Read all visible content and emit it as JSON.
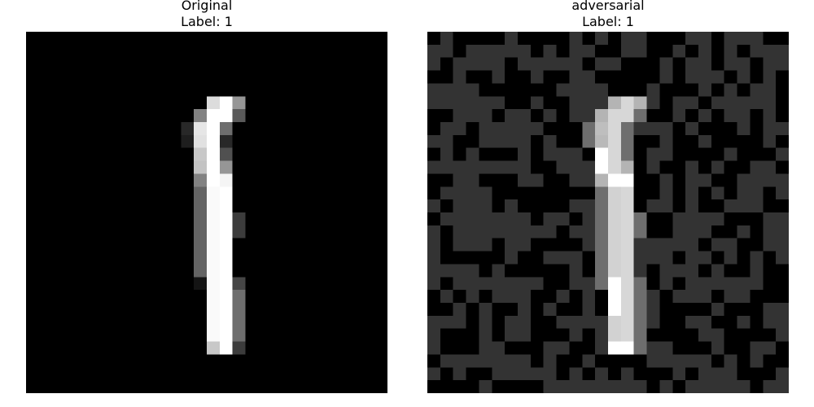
{
  "panels": [
    {
      "title": "Original",
      "label_text": "Label: 1"
    },
    {
      "title": "adversarial",
      "label_text": "Label: 1"
    }
  ],
  "colors": {
    "background": "#000000",
    "noise_gray": "#333333",
    "stroke_white": "#ffffff"
  }
}
